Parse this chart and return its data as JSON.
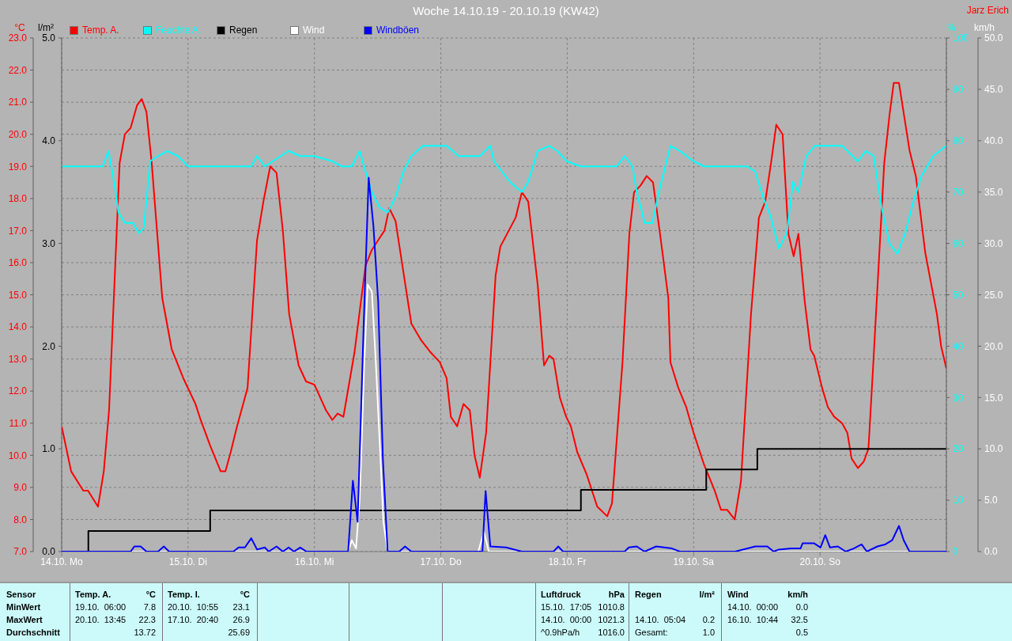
{
  "chart_data": [
    {
      "type": "line",
      "title": "Woche 14.10.19 - 20.10.19 (KW42)",
      "ylabel": "°C",
      "y2label": "l/m²",
      "y3label": "%",
      "xlim": [
        "--10-14T00:00",
        "--10-21T00:00"
      ],
      "xticks": [
        {
          "value": "--10-14",
          "label": "14.10. Mo"
        },
        {
          "value": "--10-15",
          "label": "15.10. Di"
        },
        {
          "value": "--10-16",
          "label": "16.10. Mi"
        },
        {
          "value": "--10-17",
          "label": "17.10. Do"
        },
        {
          "value": "--10-18",
          "label": "18.10. Fr"
        },
        {
          "value": "--10-19",
          "label": "19.10. Sa"
        },
        {
          "value": "--10-20",
          "label": "20.10. So"
        }
      ],
      "ylim": [
        7,
        23
      ],
      "yticks": [
        {
          "value": 7,
          "label": "7.0"
        },
        {
          "value": 8,
          "label": "8.0"
        },
        {
          "value": 9,
          "label": "9.0"
        },
        {
          "value": 10,
          "label": "10.0"
        },
        {
          "value": 11,
          "label": "11.0"
        },
        {
          "value": 12,
          "label": "12.0"
        },
        {
          "value": 13,
          "label": "13.0"
        },
        {
          "value": 14,
          "label": "14.0"
        },
        {
          "value": 15,
          "label": "15.0"
        },
        {
          "value": 16,
          "label": "16.0"
        },
        {
          "value": 17,
          "label": "17.0"
        },
        {
          "value": 18,
          "label": "18.0"
        },
        {
          "value": 19,
          "label": "19.0"
        },
        {
          "value": 20,
          "label": "20.0"
        },
        {
          "value": 21,
          "label": "21.0"
        },
        {
          "value": 22,
          "label": "22.0"
        },
        {
          "value": 23,
          "label": "23.0"
        }
      ],
      "y2lim": [
        0,
        5
      ],
      "y2ticks": [
        {
          "value": 0,
          "label": "0.0"
        },
        {
          "value": 1,
          "label": "1.0"
        },
        {
          "value": 2,
          "label": "2.0"
        },
        {
          "value": 3,
          "label": "3.0"
        },
        {
          "value": 4,
          "label": "4.0"
        },
        {
          "value": 5,
          "label": "5.0"
        }
      ],
      "y3lim": [
        0,
        100
      ],
      "y3ticks": [
        0,
        10,
        20,
        30,
        40,
        50,
        60,
        70,
        80,
        90,
        100
      ],
      "grid": true,
      "legend": "top left",
      "line_style": "solid",
      "series": [
        {
          "name": "Temp. A.",
          "color": "#ff0000",
          "x": [
            "--10-14T00:00",
            "--10-14T01:48",
            "--10-14T04:06",
            "--10-14T05:00",
            "--10-14T06:54",
            "--10-14T08:00",
            "--10-14T09:00",
            "--10-14T11:00",
            "--10-14T12:00",
            "--10-14T13:06",
            "--10-14T14:18",
            "--10-14T15:12",
            "--10-14T16:06",
            "--10-14T17:06",
            "--10-14T19:06",
            "--10-14T20:54",
            "--10-14T23:06",
            "--10-15T01:24",
            "--10-15T02:24",
            "--10-15T04:12",
            "--10-15T06:12",
            "--10-15T07:06",
            "--10-15T08:06",
            "--10-15T09:18",
            "--10-15T11:18",
            "--10-15T13:06",
            "--10-15T14:18",
            "--10-15T15:36",
            "--10-15T16:48",
            "--10-15T18:00",
            "--10-15T19:12",
            "--10-15T21:00",
            "--10-15T22:24",
            "--10-16T00:00",
            "--10-16T02:12",
            "--10-16T03:24",
            "--10-16T04:24",
            "--10-16T05:30",
            "--10-16T07:36",
            "--10-16T08:36",
            "--10-16T09:42",
            "--10-16T10:54",
            "--10-16T12:06",
            "--10-16T13:18",
            "--10-16T14:12",
            "--10-16T15:24",
            "--10-16T16:54",
            "--10-16T18:24",
            "--10-16T20:12",
            "--10-16T22:06",
            "--10-16T23:48",
            "--10-17T01:06",
            "--10-17T01:54",
            "--10-17T03:06",
            "--10-17T04:18",
            "--10-17T05:30",
            "--10-17T06:24",
            "--10-17T07:24",
            "--10-17T08:36",
            "--10-17T10:24",
            "--10-17T11:18",
            "--10-17T14:12",
            "--10-17T15:24",
            "--10-17T16:36",
            "--10-17T18:24",
            "--10-17T19:36",
            "--10-17T20:36",
            "--10-17T21:24",
            "--10-17T22:36",
            "--10-17T23:48",
            "--10-18T00:42",
            "--10-18T01:54",
            "--10-18T03:42",
            "--10-18T05:42",
            "--10-18T07:36",
            "--10-18T08:30",
            "--10-18T10:30",
            "--10-18T11:48",
            "--10-18T12:42",
            "--10-18T13:54",
            "--10-18T15:06",
            "--10-18T16:18",
            "--10-18T17:42",
            "--10-18T19:12",
            "--10-18T19:36",
            "--10-18T21:06",
            "--10-18T22:36",
            "--10-19T00:00",
            "--10-19T02:00",
            "--10-19T04:00",
            "--10-19T05:12",
            "--10-19T06:24",
            "--10-19T07:48",
            "--10-19T09:00",
            "--10-19T10:54",
            "--10-19T12:24",
            "--10-19T13:36",
            "--10-19T14:42",
            "--10-19T15:42",
            "--10-19T16:54",
            "--10-19T18:00",
            "--10-19T19:00",
            "--10-19T19:54",
            "--10-19T21:06",
            "--10-19T22:12",
            "--10-19T22:54",
            "--10-20T00:24",
            "--10-20T01:30",
            "--10-20T02:42",
            "--10-20T04:12",
            "--10-20T05:12",
            "--10-20T06:00",
            "--10-20T07:12",
            "--10-20T08:18",
            "--10-20T09:12",
            "--10-20T10:06",
            "--10-20T12:12",
            "--10-20T13:12",
            "--10-20T14:00",
            "--10-20T15:00",
            "--10-20T17:00",
            "--10-20T18:12",
            "--10-20T20:00",
            "--10-20T22:12",
            "--10-20T23:00",
            "--10-21T00:00"
          ],
          "values": [
            10.9,
            9.5,
            8.9,
            8.9,
            8.4,
            9.5,
            11.4,
            19.1,
            20.0,
            20.2,
            20.9,
            21.1,
            20.7,
            19.1,
            14.9,
            13.3,
            12.4,
            11.6,
            11.1,
            10.3,
            9.5,
            9.5,
            10.1,
            10.9,
            12.1,
            16.7,
            17.9,
            19.0,
            18.8,
            17.0,
            14.4,
            12.8,
            12.3,
            12.2,
            11.4,
            11.1,
            11.3,
            11.2,
            13.2,
            14.5,
            15.9,
            16.4,
            16.7,
            17.0,
            17.7,
            17.3,
            15.7,
            14.1,
            13.6,
            13.2,
            12.9,
            12.4,
            11.2,
            10.9,
            11.6,
            11.4,
            10.0,
            9.3,
            10.7,
            15.6,
            16.5,
            17.4,
            18.2,
            17.9,
            15.3,
            12.8,
            13.1,
            13.0,
            11.8,
            11.2,
            10.9,
            10.1,
            9.4,
            8.4,
            8.1,
            8.5,
            12.9,
            16.9,
            18.2,
            18.4,
            18.7,
            18.5,
            16.8,
            14.9,
            12.9,
            12.1,
            11.5,
            10.7,
            9.7,
            8.9,
            8.3,
            8.3,
            8.0,
            9.2,
            14.4,
            17.4,
            17.9,
            19.1,
            20.3,
            20.0,
            16.9,
            16.2,
            16.9,
            14.8,
            13.3,
            13.1,
            12.1,
            11.5,
            11.2,
            11.0,
            10.7,
            9.9,
            9.6,
            9.8,
            10.2,
            12.8,
            19.1,
            20.6,
            21.6,
            21.6,
            19.5,
            18.7,
            16.3,
            14.4,
            13.4,
            12.7
          ]
        },
        {
          "name": "Feuchte A.",
          "color": "#00ffff",
          "axis": "y3",
          "x": [
            "--10-14T00:00",
            "--10-14T07:48",
            "--10-14T08:54",
            "--10-14T10:06",
            "--10-14T10:48",
            "--10-14T12:00",
            "--10-14T13:30",
            "--10-14T14:42",
            "--10-14T15:36",
            "--10-14T16:48",
            "--10-14T18:18",
            "--10-14T20:06",
            "--10-14T22:06",
            "--10-15T00:00",
            "--10-15T03:18",
            "--10-15T06:18",
            "--10-15T09:18",
            "--10-15T12:00",
            "--10-15T13:06",
            "--10-15T14:36",
            "--10-15T16:06",
            "--10-15T19:06",
            "--10-15T21:18",
            "--10-16T00:00",
            "--10-16T03:24",
            "--10-16T05:12",
            "--10-16T07:06",
            "--10-16T08:36",
            "--10-16T09:42",
            "--10-16T10:54",
            "--10-16T12:24",
            "--10-16T13:54",
            "--10-16T15:24",
            "--10-16T16:54",
            "--10-16T18:24",
            "--10-16T20:36",
            "--10-16T22:54",
            "--10-17T01:06",
            "--10-17T03:24",
            "--10-17T05:36",
            "--10-17T07:24",
            "--10-17T09:24",
            "--10-17T10:06",
            "--10-17T11:36",
            "--10-17T13:06",
            "--10-17T15:24",
            "--10-17T16:36",
            "--10-17T18:24",
            "--10-17T20:36",
            "--10-17T22:06",
            "--10-17T23:54",
            "--10-18T02:36",
            "--10-18T06:24",
            "--10-18T09:24",
            "--10-18T10:54",
            "--10-18T12:24",
            "--10-18T13:12",
            "--10-18T14:42",
            "--10-18T16:12",
            "--10-18T17:24",
            "--10-18T19:36",
            "--10-18T21:24",
            "--10-19T00:00",
            "--10-19T02:00",
            "--10-19T07:54",
            "--10-19T10:12",
            "--10-19T11:42",
            "--10-19T13:12",
            "--10-19T14:42",
            "--10-19T16:12",
            "--10-19T17:42",
            "--10-19T18:54",
            "--10-19T19:54",
            "--10-19T21:24",
            "--10-19T23:00",
            "--10-20T01:12",
            "--10-20T04:12",
            "--10-20T06:12",
            "--10-20T07:12",
            "--10-20T08:42",
            "--10-20T10:12",
            "--10-20T11:42",
            "--10-20T13:12",
            "--10-20T14:42",
            "--10-20T16:12",
            "--10-20T17:42",
            "--10-20T19:12",
            "--10-20T21:30",
            "--10-21T00:00"
          ],
          "values": [
            75,
            75,
            78,
            71,
            66,
            64,
            64,
            62,
            63,
            76,
            77,
            78,
            77,
            75,
            75,
            75,
            75,
            75,
            77,
            75,
            76,
            78,
            77,
            77,
            76,
            75,
            75,
            78,
            74,
            70,
            67,
            66,
            69,
            74,
            77,
            79,
            79,
            79,
            77,
            77,
            77,
            79,
            76,
            74,
            72,
            70,
            72,
            78,
            79,
            78,
            76,
            75,
            75,
            75,
            77,
            75,
            70,
            64,
            64,
            70,
            79,
            78,
            76,
            75,
            75,
            75,
            74,
            69,
            65,
            59,
            62,
            72,
            70,
            77,
            79,
            79,
            79,
            77,
            76,
            78,
            77,
            67,
            60,
            58,
            62,
            68,
            73,
            77,
            79
          ]
        },
        {
          "name": "Regen",
          "color": "#000000",
          "type": "step",
          "axis": "y2",
          "x": [
            "--10-14T00:00",
            "--10-14T05:04",
            "--10-15T04:12",
            "--10-18T02:36",
            "--10-19T02:24",
            "--10-19T12:06",
            "--10-21T00:00"
          ],
          "values": [
            0,
            0.2,
            0.4,
            0.6,
            0.8,
            1.0,
            1.0
          ]
        }
      ],
      "annotations": [
        "Jarz Erich",
        "Sensor",
        "MinWert",
        "MaxWert",
        "Durchschnitt",
        "Temp. A.",
        "°C",
        "19.10.  06:00",
        "7.8",
        "20.10.  13:45",
        "22.3",
        "13.72",
        "Temp. I.",
        "°C",
        "20.10.  10:55",
        "23.1",
        "17.10.  20:40",
        "26.9",
        "25.69",
        "Luftdruck",
        "hPa",
        "15.10.  17:05",
        "1010.8",
        "14.10.  00:00",
        "1021.3",
        "^0.9hPa/h",
        "1016.0",
        "Regen",
        "l/m²",
        "14.10.  05:04",
        "0.2",
        "Gesamt:",
        "1.0",
        "Wind",
        "km/h",
        "14.10.  00:00",
        "0.0",
        "16.10.  10:44",
        "32.5",
        "0.5"
      ]
    },
    {
      "type": "line",
      "ylabel": "km/h",
      "tick_labels": "y",
      "legend": "top left",
      "line_style": "solid",
      "xlim": [
        "--10-14T00:00",
        "--10-21T00:00"
      ],
      "ylim": [
        0,
        50
      ],
      "yticks": [
        {
          "value": 0,
          "label": "0.0"
        },
        {
          "value": 5,
          "label": "5.0"
        },
        {
          "value": 10,
          "label": "10.0"
        },
        {
          "value": 15,
          "label": "15.0"
        },
        {
          "value": 20,
          "label": "20.0"
        },
        {
          "value": 25,
          "label": "25.0"
        },
        {
          "value": 30,
          "label": "30.0"
        },
        {
          "value": 35,
          "label": "35.0"
        },
        {
          "value": 40,
          "label": "40.0"
        },
        {
          "value": 45,
          "label": "45.0"
        },
        {
          "value": 50,
          "label": "50.0"
        }
      ],
      "series": [
        {
          "name": "Wind",
          "color": "#ffffff",
          "x": [
            "--10-14T00:00",
            "--10-16T06:24",
            "--10-16T07:06",
            "--10-16T07:54",
            "--10-16T08:36",
            "--10-16T09:24",
            "--10-16T10:06",
            "--10-16T10:54",
            "--10-16T11:36",
            "--10-16T12:24",
            "--10-16T13:06",
            "--10-16T13:54",
            "--10-17T07:06",
            "--10-17T08:12",
            "--10-17T09:06",
            "--10-21T00:00"
          ],
          "values": [
            0,
            0,
            1.1,
            0.3,
            5.2,
            17.5,
            26.0,
            25.3,
            19.0,
            10.6,
            2.9,
            0,
            0,
            1.9,
            0,
            0
          ]
        },
        {
          "name": "Windböen",
          "color": "#0000ff",
          "x": [
            "--10-14T00:00",
            "--10-14T13:06",
            "--10-14T13:48",
            "--10-14T15:00",
            "--10-14T16:06",
            "--10-14T18:18",
            "--10-14T19:24",
            "--10-14T20:24",
            "--10-15T08:36",
            "--10-15T09:36",
            "--10-15T10:48",
            "--10-15T12:00",
            "--10-15T13:06",
            "--10-15T14:36",
            "--10-15T15:18",
            "--10-15T16:48",
            "--10-15T18:00",
            "--10-15T19:06",
            "--10-15T20:06",
            "--10-15T21:18",
            "--10-15T22:30",
            "--10-16T06:24",
            "--10-16T07:18",
            "--10-16T08:12",
            "--10-16T09:24",
            "--10-16T10:18",
            "--10-16T11:12",
            "--10-16T12:06",
            "--10-16T13:00",
            "--10-16T13:54",
            "--10-16T16:06",
            "--10-16T17:12",
            "--10-16T18:24",
            "--10-17T07:54",
            "--10-17T08:30",
            "--10-17T09:24",
            "--10-17T12:24",
            "--10-17T15:24",
            "--10-17T21:24",
            "--10-17T22:18",
            "--10-17T23:12",
            "--10-18T10:54",
            "--10-18T11:42",
            "--10-18T13:12",
            "--10-18T14:42",
            "--10-18T16:54",
            "--10-18T19:54",
            "--10-18T21:24",
            "--10-19T07:54",
            "--10-19T11:42",
            "--10-19T14:00",
            "--10-19T15:12",
            "--10-19T16:12",
            "--10-19T18:30",
            "--10-19T20:18",
            "--10-19T20:42",
            "--10-19T22:54",
            "--10-20T00:06",
            "--10-20T01:00",
            "--10-20T01:54",
            "--10-20T03:24",
            "--10-20T04:54",
            "--10-20T06:24",
            "--10-20T07:54",
            "--10-20T08:54",
            "--10-20T10:54",
            "--10-20T12:24",
            "--10-20T13:42",
            "--10-20T15:00",
            "--10-20T15:54",
            "--10-20T17:00",
            "--10-21T00:00"
          ],
          "values": [
            0,
            0,
            0.5,
            0.5,
            0,
            0,
            0.5,
            0,
            0,
            0.4,
            0.4,
            1.3,
            0.2,
            0.4,
            0,
            0.5,
            0,
            0.4,
            0,
            0.4,
            0,
            0,
            6.9,
            2.9,
            22.9,
            36.4,
            31.7,
            24.4,
            9.0,
            0,
            0,
            0.5,
            0,
            0,
            5.9,
            0.5,
            0.4,
            0,
            0,
            0.5,
            0,
            0,
            0.4,
            0.5,
            0,
            0.5,
            0.3,
            0,
            0,
            0.5,
            0.5,
            0,
            0.2,
            0.3,
            0.3,
            0.8,
            0.8,
            0.4,
            1.6,
            0.4,
            0.5,
            0,
            0.3,
            0.7,
            0,
            0.5,
            0.7,
            1.1,
            2.5,
            1.1,
            0,
            0
          ]
        }
      ]
    }
  ]
}
